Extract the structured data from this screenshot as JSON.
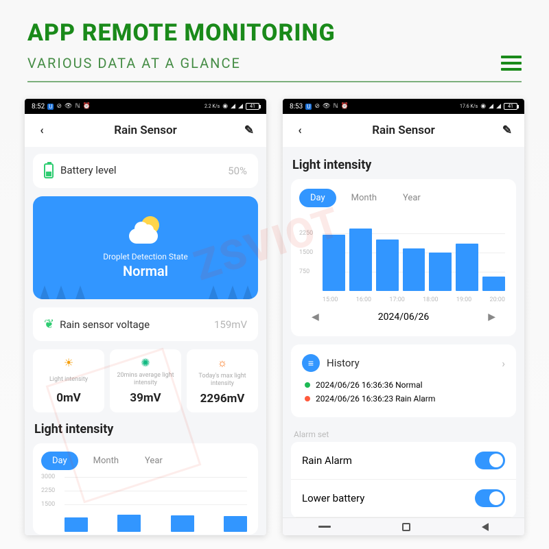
{
  "header": {
    "title": "APP REMOTE MONITORING",
    "subtitle": "VARIOUS DATA AT A GLANCE",
    "title_color": "#1a8a1a",
    "subtitle_color": "#458c45",
    "divider_color": "#7baf7b"
  },
  "watermark": "ZSVIOT",
  "phone_left": {
    "status": {
      "time": "8:52",
      "badge": "U",
      "speed": "2.2 K/s",
      "batt": "41"
    },
    "nav": {
      "title": "Rain Sensor"
    },
    "battery": {
      "label": "Battery level",
      "value": "50%"
    },
    "weather": {
      "sub": "Droplet Detection State",
      "state": "Normal",
      "bg_color": "#3296ff"
    },
    "rain": {
      "label": "Rain sensor voltage",
      "value": "159mV"
    },
    "tiles": [
      {
        "icon": "☀",
        "icon_color": "#f59e0b",
        "label": "Light intensity",
        "value": "0mV"
      },
      {
        "icon": "✺",
        "icon_color": "#10b981",
        "label": "20mins average light intensity",
        "value": "39mV"
      },
      {
        "icon": "☼",
        "icon_color": "#f97316",
        "label": "Today's max light intensity",
        "value": "2296mV"
      }
    ],
    "section": "Light intensity",
    "tabs": {
      "items": [
        "Day",
        "Month",
        "Year"
      ],
      "active": 0
    },
    "chart": {
      "type": "bar",
      "ylim": [
        0,
        3000
      ],
      "yticks": [
        3000,
        2250,
        1500
      ],
      "values": [
        800,
        950,
        900,
        850
      ],
      "bar_color": "#3296ff",
      "grid_color": "#eeeeee"
    }
  },
  "phone_right": {
    "status": {
      "time": "8:53",
      "badge": "U",
      "speed": "17.6 K/s",
      "batt": "41"
    },
    "nav": {
      "title": "Rain Sensor"
    },
    "section": "Light intensity",
    "tabs": {
      "items": [
        "Day",
        "Month",
        "Year"
      ],
      "active": 0
    },
    "chart": {
      "type": "bar",
      "ylim": [
        0,
        3000
      ],
      "yticks": [
        2250,
        1500,
        750
      ],
      "xticks": [
        "15:00",
        "16:00",
        "17:00",
        "18:00",
        "19:00",
        "20:00"
      ],
      "values": [
        2200,
        2450,
        2000,
        1650,
        1500,
        1850,
        550
      ],
      "bar_color": "#3296ff",
      "grid_color": "#eeeeee"
    },
    "date_nav": {
      "date": "2024/06/26"
    },
    "history": {
      "label": "History",
      "items": [
        {
          "color": "#1db954",
          "text": "2024/06/26 16:36:36 Normal"
        },
        {
          "color": "#ff5a3c",
          "text": "2024/06/26 16:36:23 Rain Alarm"
        }
      ]
    },
    "alarm": {
      "section_label": "Alarm set",
      "rows": [
        {
          "label": "Rain Alarm",
          "on": true
        },
        {
          "label": "Lower battery",
          "on": true
        }
      ],
      "toggle_color": "#3296ff"
    }
  }
}
